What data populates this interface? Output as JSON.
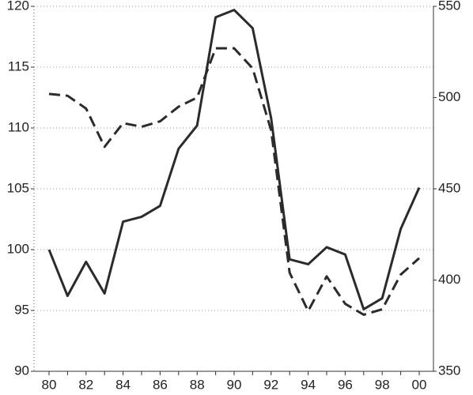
{
  "chart_data": {
    "type": "line",
    "categories": [
      "80",
      null,
      "82",
      null,
      "84",
      null,
      "86",
      null,
      "88",
      null,
      "90",
      null,
      "92",
      null,
      "94",
      null,
      "96",
      null,
      "98",
      null,
      "00"
    ],
    "series": [
      {
        "color": "#2b2b2b",
        "style": "solid",
        "axis": "y",
        "values": [
          100,
          96.2,
          99,
          96.4,
          102.3,
          102.7,
          103.6,
          108.3,
          110.2,
          119.1,
          119.7,
          118.2,
          110.8,
          99.2,
          98.8,
          100.2,
          99.6,
          95.1,
          96,
          101.7,
          105.1
        ]
      },
      {
        "color": "#2b2b2b",
        "style": "dashed",
        "axis": "y2",
        "values": [
          502,
          501,
          494,
          473,
          486,
          484,
          487,
          495,
          500,
          527,
          527,
          516,
          482,
          404,
          383,
          402,
          387,
          381,
          384,
          403,
          412
        ]
      }
    ],
    "ylim": [
      90,
      120
    ],
    "yticks": [
      90,
      95,
      100,
      105,
      110,
      115,
      120
    ],
    "y2lim": [
      350,
      550
    ],
    "y2ticks": [
      350,
      400,
      450,
      500,
      550
    ],
    "grid": true
  }
}
